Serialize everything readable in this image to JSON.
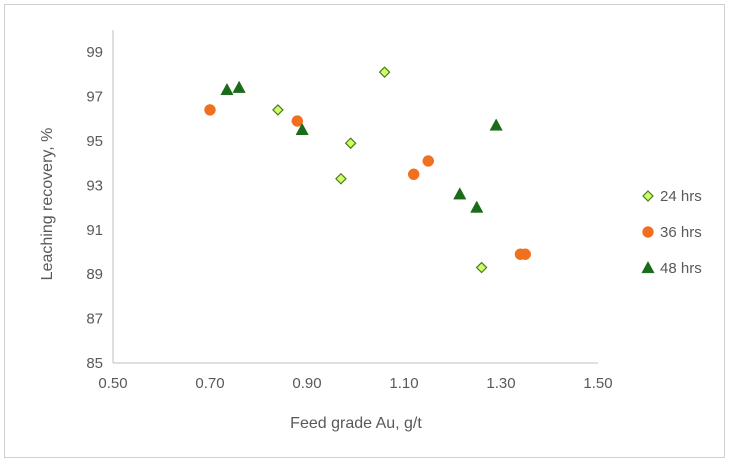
{
  "chart_data": {
    "type": "scatter",
    "title": "",
    "xlabel": "Feed grade Au, g/t",
    "ylabel": "Leaching recovery, %",
    "xlim": [
      0.5,
      1.5
    ],
    "ylim": [
      85,
      100
    ],
    "x_ticks": [
      0.5,
      0.7,
      0.9,
      1.1,
      1.3,
      1.5
    ],
    "x_tick_labels": [
      "0.50",
      "0.70",
      "0.90",
      "1.10",
      "1.30",
      "1.50"
    ],
    "y_ticks": [
      85,
      87,
      89,
      91,
      93,
      95,
      97,
      99
    ],
    "y_tick_labels": [
      "85",
      "87",
      "89",
      "91",
      "93",
      "95",
      "97",
      "99"
    ],
    "grid": false,
    "legend_position": "right",
    "series": [
      {
        "name": "24 hrs",
        "marker": "diamond",
        "color": "#ccff66",
        "edge_color": "#4d7a1f",
        "points": [
          {
            "x": 0.84,
            "y": 96.4
          },
          {
            "x": 0.99,
            "y": 94.9
          },
          {
            "x": 0.97,
            "y": 93.3
          },
          {
            "x": 1.06,
            "y": 98.1
          },
          {
            "x": 1.26,
            "y": 89.3
          }
        ]
      },
      {
        "name": "36 hrs",
        "marker": "circle",
        "color": "#f07020",
        "edge_color": "#f07020",
        "points": [
          {
            "x": 0.7,
            "y": 96.4
          },
          {
            "x": 0.88,
            "y": 95.9
          },
          {
            "x": 1.12,
            "y": 93.5
          },
          {
            "x": 1.15,
            "y": 94.1
          },
          {
            "x": 1.34,
            "y": 89.9
          },
          {
            "x": 1.35,
            "y": 89.9
          }
        ]
      },
      {
        "name": "48 hrs",
        "marker": "triangle",
        "color": "#1a6b1a",
        "edge_color": "#1a6b1a",
        "points": [
          {
            "x": 0.735,
            "y": 97.3
          },
          {
            "x": 0.76,
            "y": 97.4
          },
          {
            "x": 0.89,
            "y": 95.5
          },
          {
            "x": 1.215,
            "y": 92.6
          },
          {
            "x": 1.25,
            "y": 92.0
          },
          {
            "x": 1.29,
            "y": 95.7
          }
        ]
      }
    ]
  }
}
